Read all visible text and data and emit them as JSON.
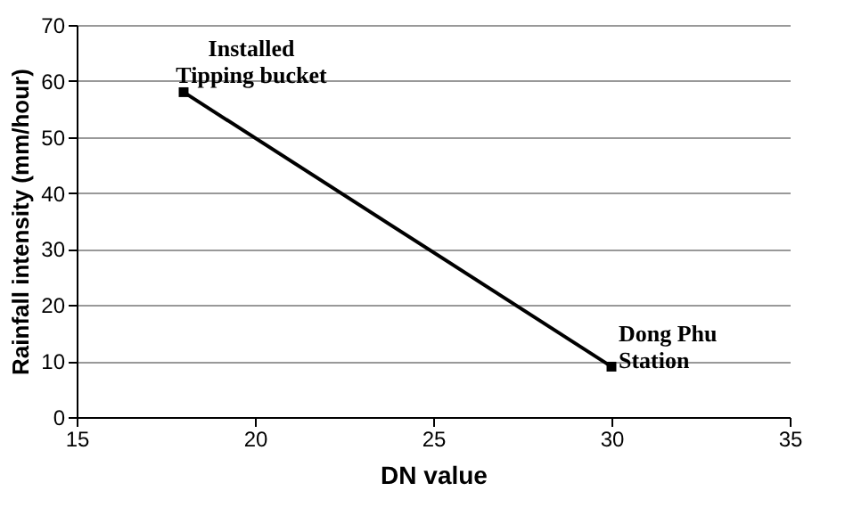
{
  "chart_data": {
    "type": "line",
    "xlabel": "DN value",
    "ylabel": "Rainfall intensity (mm/hour)",
    "x": [
      18,
      30
    ],
    "values": [
      58,
      9
    ],
    "color": "#000000",
    "marker": "square",
    "line_style": "solid",
    "xlim": [
      15,
      35
    ],
    "xticks": [
      15,
      20,
      25,
      30,
      35
    ],
    "ylim": [
      0,
      70
    ],
    "yticks": [
      0,
      10,
      20,
      30,
      40,
      50,
      60,
      70
    ],
    "grid": "y",
    "annotations": [
      {
        "text": "Installed\nTipping bucket",
        "x": 18,
        "y": 58
      },
      {
        "text": "Dong Phu\nStation",
        "x": 30,
        "y": 9
      }
    ]
  }
}
